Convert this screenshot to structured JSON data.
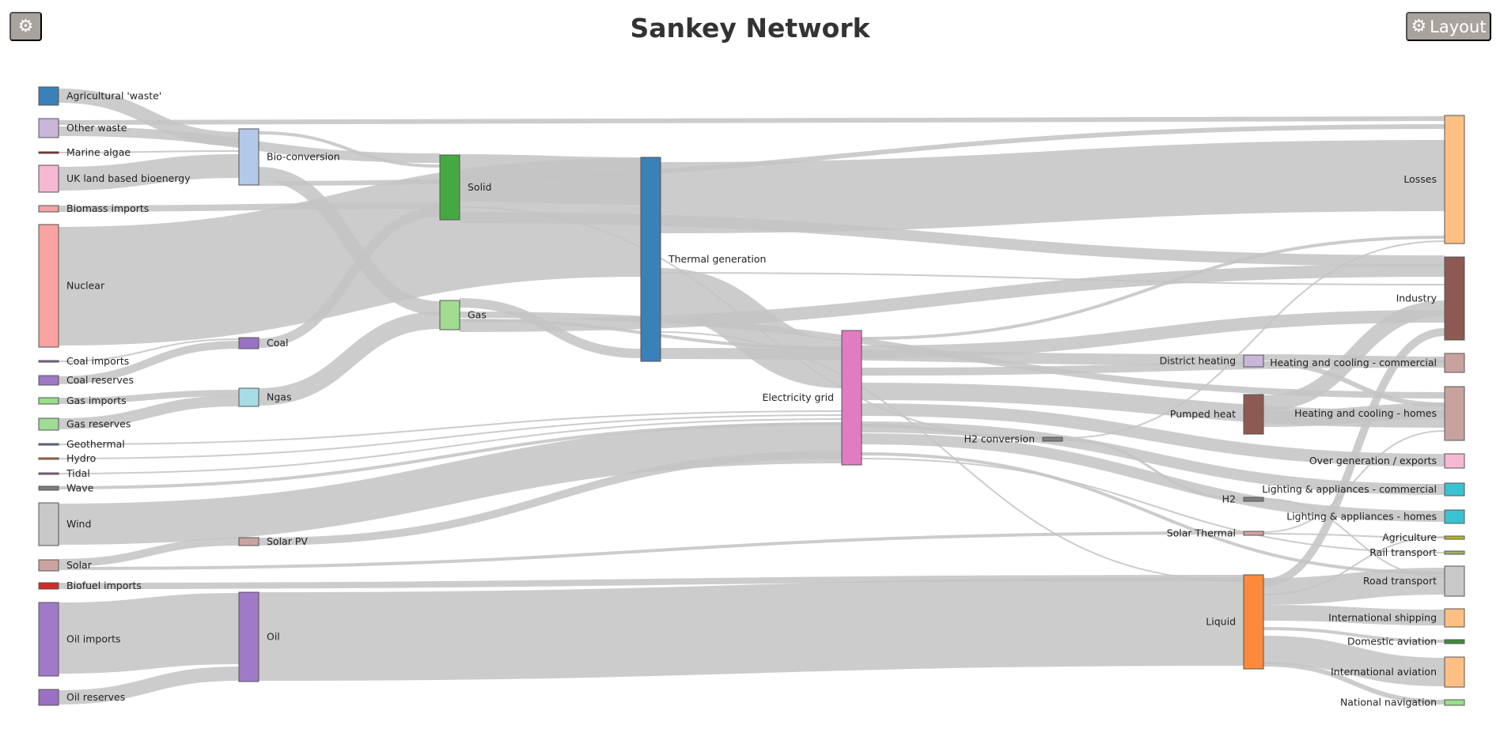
{
  "header": {
    "title": "Sankey Network",
    "settings_icon": "gear-icon",
    "layout_button": {
      "icon": "gear-icon",
      "label": "Layout"
    }
  },
  "nodes": [
    {
      "id": "agri",
      "label": "Agricultural 'waste'",
      "color": "#3a80b9",
      "col": 0
    },
    {
      "id": "otherw",
      "label": "Other waste",
      "color": "#c9b6d8",
      "col": 0
    },
    {
      "id": "algae",
      "label": "Marine algae",
      "color": "#8b1a1a",
      "col": 0
    },
    {
      "id": "ukland",
      "label": "UK land based bioenergy",
      "color": "#f5b8d2",
      "col": 0
    },
    {
      "id": "bioimp",
      "label": "Biomass imports",
      "color": "#f2a2a2",
      "col": 0
    },
    {
      "id": "nuclear",
      "label": "Nuclear",
      "color": "#f9a3a2",
      "col": 0
    },
    {
      "id": "coalimp",
      "label": "Coal imports",
      "color": "#8a5fa8",
      "col": 0
    },
    {
      "id": "coalres",
      "label": "Coal reserves",
      "color": "#9e79c4",
      "col": 0
    },
    {
      "id": "gasimp",
      "label": "Gas imports",
      "color": "#98df8a",
      "col": 0
    },
    {
      "id": "gasres",
      "label": "Gas reserves",
      "color": "#a0dc96",
      "col": 0
    },
    {
      "id": "geo",
      "label": "Geothermal",
      "color": "#5a6aa6",
      "col": 0
    },
    {
      "id": "hydro",
      "label": "Hydro",
      "color": "#d26d13",
      "col": 0
    },
    {
      "id": "tidal",
      "label": "Tidal",
      "color": "#a24ea3",
      "col": 0
    },
    {
      "id": "wave",
      "label": "Wave",
      "color": "#7f7f7f",
      "col": 0
    },
    {
      "id": "wind",
      "label": "Wind",
      "color": "#c8c8c8",
      "col": 0
    },
    {
      "id": "solar",
      "label": "Solar",
      "color": "#c9a4a0",
      "col": 0
    },
    {
      "id": "biofuel",
      "label": "Biofuel imports",
      "color": "#d02a2a",
      "col": 0
    },
    {
      "id": "oilimp",
      "label": "Oil imports",
      "color": "#a07ac6",
      "col": 0
    },
    {
      "id": "oilres",
      "label": "Oil reserves",
      "color": "#9a70c2",
      "col": 0
    },
    {
      "id": "bioconv",
      "label": "Bio-conversion",
      "color": "#b3c9ea",
      "col": 1
    },
    {
      "id": "coal",
      "label": "Coal",
      "color": "#9a72c4",
      "col": 1
    },
    {
      "id": "ngas",
      "label": "Ngas",
      "color": "#a6dce5",
      "col": 1
    },
    {
      "id": "solarpv",
      "label": "Solar PV",
      "color": "#c9a4a0",
      "col": 1
    },
    {
      "id": "oil",
      "label": "Oil",
      "color": "#a07ac6",
      "col": 1
    },
    {
      "id": "solid",
      "label": "Solid",
      "color": "#46a843",
      "col": 2
    },
    {
      "id": "gas",
      "label": "Gas",
      "color": "#a1dc91",
      "col": 2
    },
    {
      "id": "thermal",
      "label": "Thermal generation",
      "color": "#3a80b9",
      "col": 3
    },
    {
      "id": "grid",
      "label": "Electricity grid",
      "color": "#e27cc0",
      "col": 4
    },
    {
      "id": "h2conv",
      "label": "H2 conversion",
      "color": "#7f7f7f",
      "col": 5
    },
    {
      "id": "district",
      "label": "District heating",
      "color": "#c9b6d8",
      "col": 6
    },
    {
      "id": "pumped",
      "label": "Pumped heat",
      "color": "#8c5a52",
      "col": 6
    },
    {
      "id": "h2",
      "label": "H2",
      "color": "#7f7f7f",
      "col": 6
    },
    {
      "id": "solarth",
      "label": "Solar Thermal",
      "color": "#d8a0a0",
      "col": 6
    },
    {
      "id": "liquid",
      "label": "Liquid",
      "color": "#fd8a3b",
      "col": 6
    },
    {
      "id": "losses",
      "label": "Losses",
      "color": "#fdbf82",
      "col": 7
    },
    {
      "id": "industry",
      "label": "Industry",
      "color": "#8c5a52",
      "col": 7
    },
    {
      "id": "hccom",
      "label": "Heating and cooling - commercial",
      "color": "#c8a29e",
      "col": 7
    },
    {
      "id": "hchome",
      "label": "Heating and cooling - homes",
      "color": "#c8a29e",
      "col": 7
    },
    {
      "id": "overgen",
      "label": "Over generation / exports",
      "color": "#f5b8d2",
      "col": 7
    },
    {
      "id": "lacom",
      "label": "Lighting & appliances - commercial",
      "color": "#3ac2d2",
      "col": 7
    },
    {
      "id": "lahome",
      "label": "Lighting & appliances - homes",
      "color": "#3ac2d2",
      "col": 7
    },
    {
      "id": "agric",
      "label": "Agriculture",
      "color": "#b6b628",
      "col": 7
    },
    {
      "id": "rail",
      "label": "Rail transport",
      "color": "#9ab06a",
      "col": 7
    },
    {
      "id": "road",
      "label": "Road transport",
      "color": "#c8c8c8",
      "col": 7
    },
    {
      "id": "intship",
      "label": "International shipping",
      "color": "#fdbf82",
      "col": 7
    },
    {
      "id": "domav",
      "label": "Domestic aviation",
      "color": "#3f8a3f",
      "col": 7
    },
    {
      "id": "intav",
      "label": "International aviation",
      "color": "#fdbf82",
      "col": 7
    },
    {
      "id": "navnav",
      "label": "National navigation",
      "color": "#98df8a",
      "col": 7
    }
  ],
  "link_color": "#c3c3c3"
}
